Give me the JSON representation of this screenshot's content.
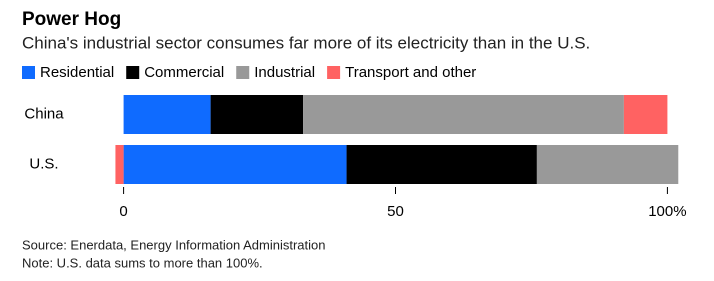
{
  "chart_data": {
    "type": "stacked-bar-horizontal",
    "title": "Power Hog",
    "subtitle": "China's industrial sector consumes far more of its electricity than in the U.S.",
    "categories": [
      "China",
      "U.S."
    ],
    "series": [
      {
        "name": "Residential",
        "color": "#0f6bff",
        "values": [
          16,
          41
        ]
      },
      {
        "name": "Commercial",
        "color": "#000000",
        "values": [
          17,
          35
        ]
      },
      {
        "name": "Industrial",
        "color": "#999999",
        "values": [
          59,
          26
        ]
      },
      {
        "name": "Transport and other",
        "color": "#ff6262",
        "values": [
          8,
          -1.5
        ]
      }
    ],
    "xlim": [
      -2.5,
      102.5
    ],
    "xticks": [
      0,
      50,
      {
        "value": 100,
        "label": "100%"
      }
    ],
    "source": "Source: Enerdata, Energy Information Administration",
    "note": "Note: U.S. data sums to more than 100%."
  }
}
